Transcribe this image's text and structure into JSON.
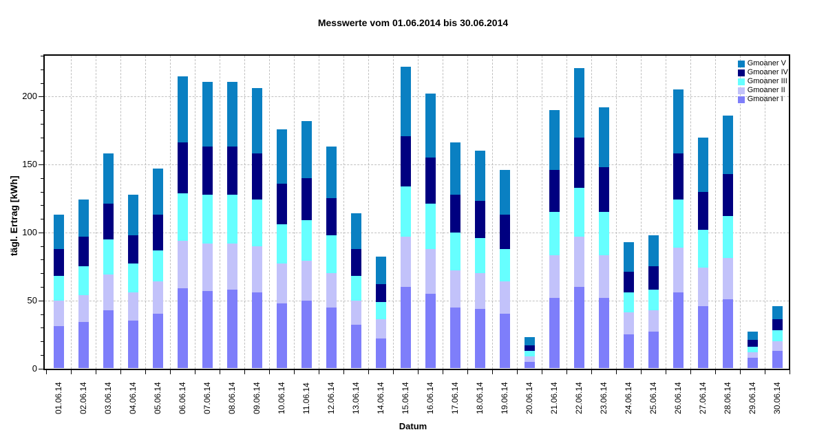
{
  "chart_data": {
    "type": "bar",
    "stacked": true,
    "title": "Messwerte vom 01.06.2014 bis 30.06.2014",
    "xlabel": "Datum",
    "ylabel": "tägl. Ertrag [kWh]",
    "ylim": [
      0,
      230
    ],
    "yticks": [
      0,
      50,
      100,
      150,
      200
    ],
    "ytick_labels": [
      "0",
      "50",
      "100",
      "150",
      "200"
    ],
    "y_minor_step": 10,
    "grid_y_values": [
      50,
      100,
      150,
      200
    ],
    "grid_x": "between-categories",
    "legend_position": "top-right-inside",
    "legend_order_top_to_bottom": [
      "Gmoaner V",
      "Gmoaner IV",
      "Gmoaner III",
      "Gmoaner II",
      "Gmoaner I"
    ],
    "categories": [
      "01.06.14",
      "02.06.14",
      "03.06.14",
      "04.06.14",
      "05.06.14",
      "06.06.14",
      "07.06.14",
      "08.06.14",
      "09.06.14",
      "10.06.14",
      "11.06.14",
      "12.06.14",
      "13.06.14",
      "14.06.14",
      "15.06.14",
      "16.06.14",
      "17.06.14",
      "18.06.14",
      "19.06.14",
      "20.06.14",
      "21.06.14",
      "22.06.14",
      "23.06.14",
      "24.06.14",
      "25.06.14",
      "26.06.14",
      "27.06.14",
      "28.06.14",
      "29.06.14",
      "30.06.14"
    ],
    "series": [
      {
        "name": "Gmoaner I",
        "color": "#7E7EFA",
        "values": [
          31,
          34,
          43,
          35,
          40,
          59,
          57,
          58,
          56,
          48,
          50,
          45,
          32,
          22,
          60,
          55,
          45,
          44,
          40,
          5,
          52,
          60,
          52,
          25,
          27,
          56,
          46,
          51,
          8,
          13
        ]
      },
      {
        "name": "Gmoaner II",
        "color": "#C2C2FA",
        "values": [
          19,
          20,
          26,
          21,
          24,
          35,
          35,
          34,
          34,
          29,
          29,
          25,
          18,
          14,
          37,
          33,
          27,
          26,
          24,
          4,
          31,
          37,
          31,
          16,
          16,
          33,
          28,
          30,
          4,
          7
        ]
      },
      {
        "name": "Gmoaner III",
        "color": "#66FFFF",
        "values": [
          18,
          21,
          26,
          21,
          23,
          35,
          36,
          36,
          34,
          29,
          30,
          28,
          18,
          13,
          37,
          33,
          28,
          26,
          24,
          4,
          32,
          36,
          32,
          15,
          15,
          35,
          28,
          31,
          4,
          8
        ]
      },
      {
        "name": "Gmoaner IV",
        "color": "#000080",
        "values": [
          20,
          22,
          26,
          21,
          26,
          37,
          35,
          35,
          34,
          30,
          31,
          27,
          20,
          13,
          37,
          34,
          28,
          27,
          25,
          4,
          31,
          37,
          33,
          15,
          17,
          34,
          28,
          31,
          5,
          8
        ]
      },
      {
        "name": "Gmoaner V",
        "color": "#0A80C2",
        "values": [
          25,
          27,
          37,
          30,
          34,
          49,
          48,
          48,
          48,
          40,
          42,
          38,
          26,
          20,
          51,
          47,
          38,
          37,
          33,
          6,
          44,
          51,
          44,
          22,
          23,
          47,
          40,
          43,
          6,
          10
        ]
      }
    ],
    "totals": [
      113,
      124,
      158,
      128,
      147,
      215,
      211,
      211,
      206,
      176,
      182,
      163,
      114,
      82,
      222,
      202,
      166,
      160,
      146,
      23,
      190,
      221,
      192,
      93,
      98,
      205,
      170,
      186,
      27,
      45
    ],
    "axis_color": "#000000",
    "grid_color": "#C0C0C0",
    "background": "#FFFFFF"
  }
}
